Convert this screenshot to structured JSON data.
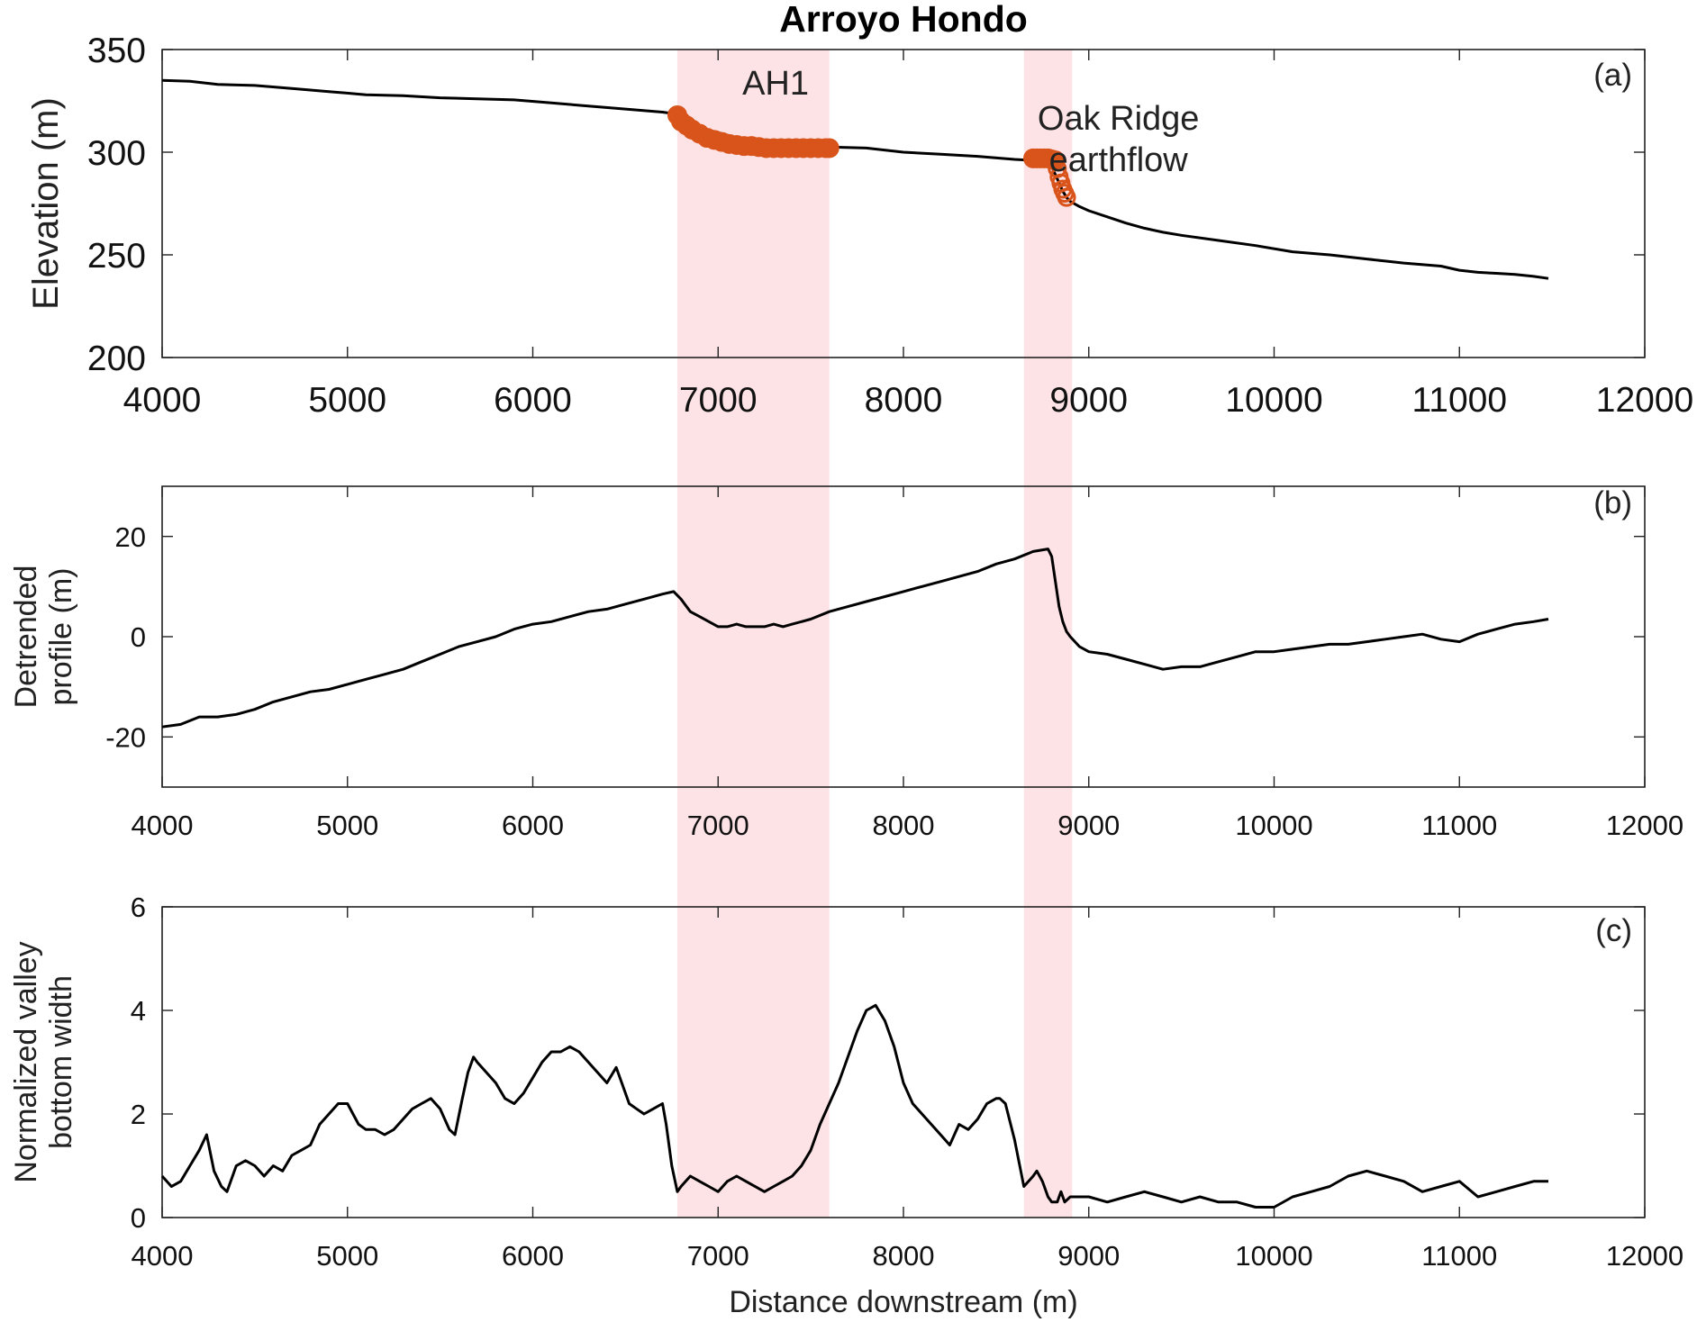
{
  "title": "Arroyo Hondo",
  "colors": {
    "line": "#000000",
    "marker": "#d9541a",
    "highlight": "#fde3e6",
    "axis": "#222222"
  },
  "highlight_regions": [
    [
      6780,
      7600
    ],
    [
      8650,
      8910
    ]
  ],
  "chart_data": [
    {
      "type": "line",
      "panel_label": "(a)",
      "ylabel": "Elevation (m)",
      "xlim": [
        4000,
        12000
      ],
      "ylim": [
        200,
        350
      ],
      "xticks": [
        "4000",
        "5000",
        "6000",
        "7000",
        "8000",
        "9000",
        "10000",
        "11000",
        "12000"
      ],
      "yticks": [
        "200",
        "250",
        "300",
        "350"
      ],
      "grid": false,
      "series": [
        {
          "style": "line",
          "x": [
            4000,
            4150,
            4300,
            4500,
            4700,
            4900,
            5100,
            5300,
            5500,
            5700,
            5900,
            6100,
            6300,
            6500,
            6700,
            6780,
            6900,
            7100,
            7300,
            7500,
            7600,
            7800,
            8000,
            8200,
            8400,
            8600,
            8700,
            8760,
            8800,
            8830,
            8860,
            8880,
            8900,
            8950,
            9000,
            9100,
            9200,
            9300,
            9400,
            9500,
            9700,
            9900,
            10100,
            10300,
            10500,
            10700,
            10900,
            11000,
            11100,
            11200,
            11300,
            11400,
            11480
          ],
          "y": [
            335,
            334.5,
            333,
            332.5,
            331,
            329.5,
            328,
            327.5,
            326.5,
            326,
            325.5,
            324,
            322.5,
            321,
            319.5,
            318.5,
            312,
            307,
            304,
            303,
            302.5,
            302,
            300,
            299,
            298,
            296.5,
            296,
            295.5,
            293,
            287,
            281,
            278,
            276,
            273.5,
            271.5,
            268.5,
            265.5,
            263,
            261,
            259.5,
            257,
            254.5,
            251.5,
            250,
            248,
            246,
            244.5,
            242.5,
            241.5,
            241,
            240.5,
            239.5,
            238.5
          ]
        },
        {
          "style": "markers-filled",
          "x": [
            6780,
            6800,
            6830,
            6860,
            6900,
            6940,
            6980,
            7020,
            7060,
            7100,
            7140,
            7180,
            7220,
            7260,
            7300,
            7340,
            7380,
            7420,
            7460,
            7500,
            7540,
            7580,
            7600,
            8700,
            8720,
            8740,
            8760,
            8780,
            8800,
            8820
          ],
          "y": [
            318,
            315,
            313,
            311,
            309,
            307,
            306,
            305,
            304,
            303.5,
            303,
            303,
            302.5,
            302,
            302,
            302,
            302,
            302,
            302,
            302,
            302,
            302,
            302,
            297,
            297,
            297,
            297,
            297,
            296.5,
            296
          ]
        },
        {
          "style": "markers-open",
          "x": [
            8830,
            8840,
            8850,
            8860,
            8870,
            8880
          ],
          "y": [
            292,
            288,
            285,
            282,
            280,
            278
          ]
        }
      ],
      "annotations": [
        {
          "lines": [
            "AH1"
          ],
          "x": 7310,
          "y": 328
        },
        {
          "lines": [
            "Oak Ridge",
            "earthflow"
          ],
          "x": 9160,
          "y": 311
        }
      ]
    },
    {
      "type": "line",
      "panel_label": "(b)",
      "ylabel": [
        "Detrended",
        "profile (m)"
      ],
      "xlim": [
        4000,
        12000
      ],
      "ylim": [
        -30,
        30
      ],
      "xticks": [
        "4000",
        "5000",
        "6000",
        "7000",
        "8000",
        "9000",
        "10000",
        "11000",
        "12000"
      ],
      "yticks": [
        "-20",
        "0",
        "20"
      ],
      "grid": false,
      "series": [
        {
          "style": "line",
          "x": [
            4000,
            4100,
            4200,
            4300,
            4400,
            4500,
            4600,
            4700,
            4800,
            4900,
            5000,
            5100,
            5200,
            5300,
            5400,
            5500,
            5600,
            5700,
            5800,
            5900,
            6000,
            6100,
            6200,
            6300,
            6400,
            6500,
            6600,
            6700,
            6760,
            6800,
            6850,
            6900,
            6950,
            7000,
            7050,
            7100,
            7150,
            7200,
            7250,
            7300,
            7350,
            7400,
            7500,
            7600,
            7700,
            7800,
            7900,
            8000,
            8100,
            8200,
            8300,
            8400,
            8500,
            8600,
            8700,
            8780,
            8800,
            8820,
            8840,
            8860,
            8880,
            8900,
            8950,
            9000,
            9100,
            9200,
            9300,
            9400,
            9500,
            9600,
            9700,
            9800,
            9900,
            10000,
            10100,
            10200,
            10300,
            10400,
            10500,
            10600,
            10700,
            10800,
            10900,
            11000,
            11100,
            11200,
            11300,
            11400,
            11480
          ],
          "y": [
            -18,
            -17.5,
            -16,
            -16,
            -15.5,
            -14.5,
            -13,
            -12,
            -11,
            -10.5,
            -9.5,
            -8.5,
            -7.5,
            -6.5,
            -5,
            -3.5,
            -2,
            -1,
            0,
            1.5,
            2.5,
            3,
            4,
            5,
            5.5,
            6.5,
            7.5,
            8.5,
            9,
            7.5,
            5,
            4,
            3,
            2,
            2,
            2.5,
            2,
            2,
            2,
            2.5,
            2,
            2.5,
            3.5,
            5,
            6,
            7,
            8,
            9,
            10,
            11,
            12,
            13,
            14.5,
            15.5,
            17,
            17.5,
            16,
            11,
            6,
            3,
            1,
            0,
            -2,
            -3,
            -3.5,
            -4.5,
            -5.5,
            -6.5,
            -6,
            -6,
            -5,
            -4,
            -3,
            -3,
            -2.5,
            -2,
            -1.5,
            -1.5,
            -1,
            -0.5,
            0,
            0.5,
            -0.5,
            -1,
            0.5,
            1.5,
            2.5,
            3,
            3.5
          ]
        }
      ]
    },
    {
      "type": "line",
      "panel_label": "(c)",
      "xlabel": "Distance downstream (m)",
      "ylabel": [
        "Normalized valley",
        "bottom width"
      ],
      "xlim": [
        4000,
        12000
      ],
      "ylim": [
        0,
        6
      ],
      "xticks": [
        "4000",
        "5000",
        "6000",
        "7000",
        "8000",
        "9000",
        "10000",
        "11000",
        "12000"
      ],
      "yticks": [
        "0",
        "2",
        "4",
        "6"
      ],
      "grid": false,
      "series": [
        {
          "style": "line",
          "x": [
            4000,
            4050,
            4100,
            4150,
            4200,
            4240,
            4280,
            4320,
            4350,
            4400,
            4450,
            4500,
            4550,
            4600,
            4650,
            4700,
            4750,
            4800,
            4850,
            4900,
            4950,
            5000,
            5030,
            5060,
            5100,
            5150,
            5200,
            5250,
            5300,
            5350,
            5400,
            5450,
            5500,
            5550,
            5580,
            5620,
            5650,
            5680,
            5700,
            5750,
            5800,
            5850,
            5900,
            5950,
            6000,
            6050,
            6100,
            6150,
            6200,
            6250,
            6300,
            6350,
            6400,
            6450,
            6480,
            6520,
            6560,
            6600,
            6650,
            6700,
            6720,
            6750,
            6780,
            6800,
            6850,
            6900,
            6950,
            7000,
            7050,
            7100,
            7150,
            7200,
            7250,
            7300,
            7350,
            7400,
            7450,
            7500,
            7550,
            7600,
            7650,
            7700,
            7750,
            7800,
            7850,
            7900,
            7950,
            8000,
            8050,
            8100,
            8150,
            8200,
            8250,
            8300,
            8350,
            8400,
            8450,
            8500,
            8520,
            8550,
            8600,
            8650,
            8700,
            8720,
            8750,
            8780,
            8800,
            8830,
            8840,
            8850,
            8870,
            8900,
            9000,
            9100,
            9200,
            9300,
            9400,
            9500,
            9600,
            9700,
            9800,
            9900,
            10000,
            10100,
            10200,
            10300,
            10400,
            10500,
            10600,
            10700,
            10800,
            10900,
            11000,
            11100,
            11200,
            11300,
            11400,
            11480
          ],
          "y": [
            0.8,
            0.6,
            0.7,
            1.0,
            1.3,
            1.6,
            0.9,
            0.6,
            0.5,
            1.0,
            1.1,
            1.0,
            0.8,
            1.0,
            0.9,
            1.2,
            1.3,
            1.4,
            1.8,
            2.0,
            2.2,
            2.2,
            2.0,
            1.8,
            1.7,
            1.7,
            1.6,
            1.7,
            1.9,
            2.1,
            2.2,
            2.3,
            2.1,
            1.7,
            1.6,
            2.3,
            2.8,
            3.1,
            3.0,
            2.8,
            2.6,
            2.3,
            2.2,
            2.4,
            2.7,
            3.0,
            3.2,
            3.2,
            3.3,
            3.2,
            3.0,
            2.8,
            2.6,
            2.9,
            2.6,
            2.2,
            2.1,
            2.0,
            2.1,
            2.2,
            1.8,
            1.0,
            0.5,
            0.6,
            0.8,
            0.7,
            0.6,
            0.5,
            0.7,
            0.8,
            0.7,
            0.6,
            0.5,
            0.6,
            0.7,
            0.8,
            1.0,
            1.3,
            1.8,
            2.2,
            2.6,
            3.1,
            3.6,
            4.0,
            4.1,
            3.8,
            3.3,
            2.6,
            2.2,
            2.0,
            1.8,
            1.6,
            1.4,
            1.8,
            1.7,
            1.9,
            2.2,
            2.3,
            2.3,
            2.2,
            1.5,
            0.6,
            0.8,
            0.9,
            0.7,
            0.4,
            0.3,
            0.3,
            0.4,
            0.5,
            0.3,
            0.4,
            0.4,
            0.3,
            0.4,
            0.5,
            0.4,
            0.3,
            0.4,
            0.3,
            0.3,
            0.2,
            0.2,
            0.4,
            0.5,
            0.6,
            0.8,
            0.9,
            0.8,
            0.7,
            0.5,
            0.6,
            0.7,
            0.4,
            0.5,
            0.6,
            0.7,
            0.7
          ]
        }
      ]
    }
  ]
}
